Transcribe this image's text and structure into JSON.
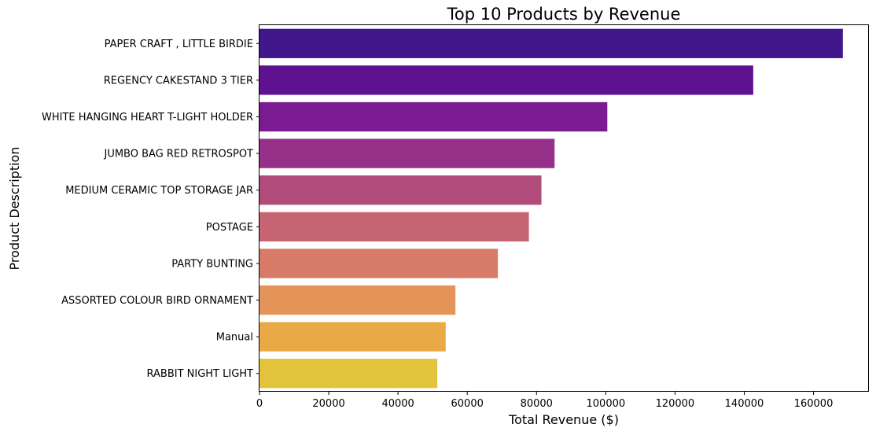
{
  "chart_data": {
    "type": "bar",
    "orientation": "horizontal",
    "title": "Top 10 Products by Revenue",
    "xlabel": "Total Revenue ($)",
    "ylabel": "Product Description",
    "xlim": [
      0,
      176000
    ],
    "x_ticks": [
      "0",
      "20000",
      "40000",
      "60000",
      "80000",
      "100000",
      "120000",
      "140000",
      "160000"
    ],
    "categories": [
      "PAPER CRAFT , LITTLE BIRDIE",
      "REGENCY CAKESTAND 3 TIER",
      "WHITE HANGING HEART T-LIGHT HOLDER",
      "JUMBO BAG RED RETROSPOT",
      "MEDIUM CERAMIC TOP STORAGE JAR",
      "POSTAGE",
      "PARTY BUNTING",
      "ASSORTED COLOUR BIRD ORNAMENT",
      "Manual",
      "RABBIT NIGHT LIGHT"
    ],
    "values": [
      168470,
      142593,
      100448,
      85220,
      81417,
      77804,
      68844,
      56581,
      53779,
      51346
    ],
    "colors": [
      "#43178c",
      "#5f128f",
      "#7a1b92",
      "#973089",
      "#b04b7a",
      "#c76473",
      "#d77a67",
      "#e49458",
      "#e9aa46",
      "#e4c33c"
    ],
    "grid": false,
    "legend": "none"
  }
}
